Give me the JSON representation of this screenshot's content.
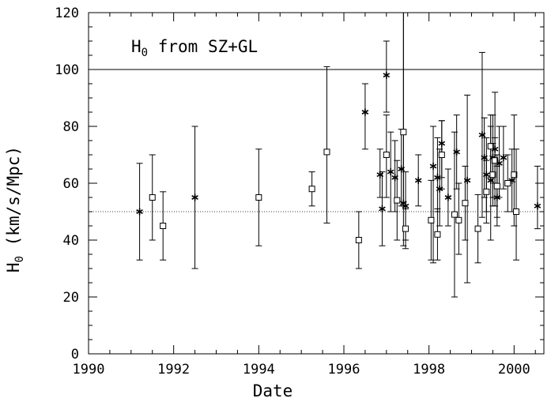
{
  "chart_data": {
    "type": "scatter",
    "title": "",
    "annotation": {
      "main": "H",
      "sub": "0",
      "rest": " from SZ+GL"
    },
    "xlabel": "Date",
    "ylabel": {
      "main": "H",
      "sub": "0",
      "rest": " (km/s/Mpc)"
    },
    "xlim": [
      1990,
      2000.7
    ],
    "ylim": [
      0,
      120
    ],
    "x_ticks": [
      1990,
      1992,
      1994,
      1996,
      1998,
      2000
    ],
    "y_ticks": [
      0,
      20,
      40,
      60,
      80,
      100,
      120
    ],
    "grid": false,
    "reference_lines": [
      {
        "y": 100,
        "style": "solid"
      },
      {
        "y": 50,
        "style": "dotted"
      }
    ],
    "series": [
      {
        "marker": "asterisk",
        "points": [
          {
            "x": 1991.2,
            "y": 50,
            "lo": 33,
            "hi": 67
          },
          {
            "x": 1992.5,
            "y": 55,
            "lo": 30,
            "hi": 80
          },
          {
            "x": 1996.5,
            "y": 85,
            "lo": 72,
            "hi": 95
          },
          {
            "x": 1996.85,
            "y": 63,
            "lo": 55,
            "hi": 72
          },
          {
            "x": 1996.9,
            "y": 51,
            "lo": 38,
            "hi": 64
          },
          {
            "x": 1997.0,
            "y": 98,
            "lo": 85,
            "hi": 110
          },
          {
            "x": 1997.1,
            "y": 64,
            "lo": 50,
            "hi": 78
          },
          {
            "x": 1997.2,
            "y": 62,
            "lo": 50,
            "hi": 75
          },
          {
            "x": 1997.35,
            "y": 65,
            "lo": 52,
            "hi": 79
          },
          {
            "x": 1997.4,
            "y": 53,
            "lo": 38,
            "hi": 120
          },
          {
            "x": 1997.45,
            "y": 52,
            "lo": 40,
            "hi": 64
          },
          {
            "x": 1997.75,
            "y": 61,
            "lo": 52,
            "hi": 70
          },
          {
            "x": 1998.1,
            "y": 66,
            "lo": 32,
            "hi": 80
          },
          {
            "x": 1998.2,
            "y": 62,
            "lo": 50,
            "hi": 76
          },
          {
            "x": 1998.25,
            "y": 58,
            "lo": 45,
            "hi": 72
          },
          {
            "x": 1998.3,
            "y": 74,
            "lo": 62,
            "hi": 82
          },
          {
            "x": 1998.45,
            "y": 55,
            "lo": 45,
            "hi": 65
          },
          {
            "x": 1998.65,
            "y": 71,
            "lo": 58,
            "hi": 84
          },
          {
            "x": 1998.9,
            "y": 61,
            "lo": 25,
            "hi": 91
          },
          {
            "x": 1999.25,
            "y": 77,
            "lo": 48,
            "hi": 106
          },
          {
            "x": 1999.3,
            "y": 69,
            "lo": 55,
            "hi": 83
          },
          {
            "x": 1999.35,
            "y": 63,
            "lo": 50,
            "hi": 76
          },
          {
            "x": 1999.45,
            "y": 61,
            "lo": 40,
            "hi": 80
          },
          {
            "x": 1999.5,
            "y": 69,
            "lo": 55,
            "hi": 84
          },
          {
            "x": 1999.55,
            "y": 72,
            "lo": 52,
            "hi": 92
          },
          {
            "x": 1999.6,
            "y": 55,
            "lo": 45,
            "hi": 66
          },
          {
            "x": 1999.65,
            "y": 67,
            "lo": 55,
            "hi": 80
          },
          {
            "x": 1999.75,
            "y": 69,
            "lo": 58,
            "hi": 80
          },
          {
            "x": 1999.95,
            "y": 61,
            "lo": 50,
            "hi": 72
          },
          {
            "x": 2000.55,
            "y": 52,
            "lo": 44,
            "hi": 66
          }
        ]
      },
      {
        "marker": "open-square",
        "points": [
          {
            "x": 1991.5,
            "y": 55,
            "lo": 40,
            "hi": 70
          },
          {
            "x": 1991.75,
            "y": 45,
            "lo": 33,
            "hi": 57
          },
          {
            "x": 1994.0,
            "y": 55,
            "lo": 38,
            "hi": 72
          },
          {
            "x": 1995.25,
            "y": 58,
            "lo": 52,
            "hi": 64
          },
          {
            "x": 1995.6,
            "y": 71,
            "lo": 46,
            "hi": 101
          },
          {
            "x": 1996.35,
            "y": 40,
            "lo": 30,
            "hi": 50
          },
          {
            "x": 1997.0,
            "y": 70,
            "lo": 55,
            "hi": 84
          },
          {
            "x": 1997.25,
            "y": 54,
            "lo": 40,
            "hi": 68
          },
          {
            "x": 1997.4,
            "y": 78,
            "lo": 52,
            "hi": 120
          },
          {
            "x": 1997.45,
            "y": 44,
            "lo": 37,
            "hi": 51
          },
          {
            "x": 1998.05,
            "y": 47,
            "lo": 33,
            "hi": 61
          },
          {
            "x": 1998.2,
            "y": 42,
            "lo": 33,
            "hi": 51
          },
          {
            "x": 1998.3,
            "y": 70,
            "lo": 58,
            "hi": 82
          },
          {
            "x": 1998.6,
            "y": 49,
            "lo": 20,
            "hi": 78
          },
          {
            "x": 1998.7,
            "y": 47,
            "lo": 35,
            "hi": 60
          },
          {
            "x": 1998.85,
            "y": 53,
            "lo": 40,
            "hi": 66
          },
          {
            "x": 1999.15,
            "y": 44,
            "lo": 32,
            "hi": 56
          },
          {
            "x": 1999.35,
            "y": 57,
            "lo": 46,
            "hi": 68
          },
          {
            "x": 1999.45,
            "y": 73,
            "lo": 62,
            "hi": 84
          },
          {
            "x": 1999.5,
            "y": 63,
            "lo": 52,
            "hi": 74
          },
          {
            "x": 1999.55,
            "y": 68,
            "lo": 60,
            "hi": 76
          },
          {
            "x": 1999.6,
            "y": 59,
            "lo": 48,
            "hi": 70
          },
          {
            "x": 1999.85,
            "y": 60,
            "lo": 50,
            "hi": 70
          },
          {
            "x": 2000.0,
            "y": 63,
            "lo": 45,
            "hi": 84
          },
          {
            "x": 2000.05,
            "y": 50,
            "lo": 33,
            "hi": 72
          }
        ]
      }
    ]
  }
}
